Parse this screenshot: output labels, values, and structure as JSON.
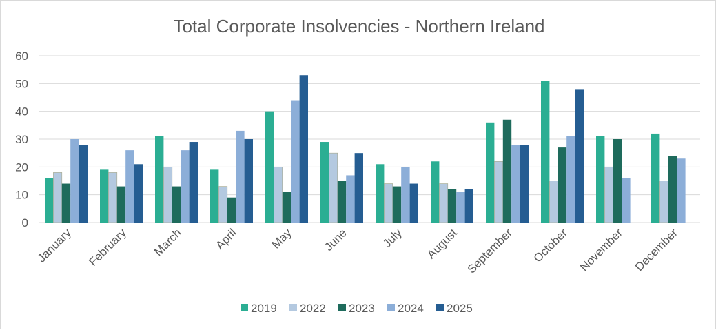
{
  "chart_data": {
    "type": "bar",
    "title": "Total Corporate Insolvencies - Northern Ireland",
    "categories": [
      "January",
      "February",
      "March",
      "April",
      "May",
      "June",
      "July",
      "August",
      "September",
      "October",
      "November",
      "December"
    ],
    "series": [
      {
        "name": "2019",
        "color": "#2bae93",
        "values": [
          16,
          19,
          31,
          19,
          40,
          29,
          21,
          22,
          36,
          51,
          31,
          32
        ]
      },
      {
        "name": "2022",
        "color": "#b4c9e0",
        "values": [
          18,
          18,
          20,
          13,
          20,
          25,
          14,
          14,
          22,
          15,
          20,
          15
        ]
      },
      {
        "name": "2023",
        "color": "#1e6b5c",
        "values": [
          14,
          13,
          13,
          9,
          11,
          15,
          13,
          12,
          37,
          27,
          30,
          24
        ]
      },
      {
        "name": "2024",
        "color": "#8caed8",
        "values": [
          30,
          26,
          26,
          33,
          44,
          17,
          20,
          11,
          28,
          31,
          16,
          23
        ]
      },
      {
        "name": "2025",
        "color": "#255d92",
        "values": [
          28,
          21,
          29,
          30,
          53,
          25,
          14,
          12,
          28,
          48,
          null,
          null
        ]
      }
    ],
    "yticks": [
      0,
      10,
      20,
      30,
      40,
      50,
      60
    ],
    "ylim": [
      0,
      60
    ],
    "grid": true,
    "legend": "bottom"
  }
}
